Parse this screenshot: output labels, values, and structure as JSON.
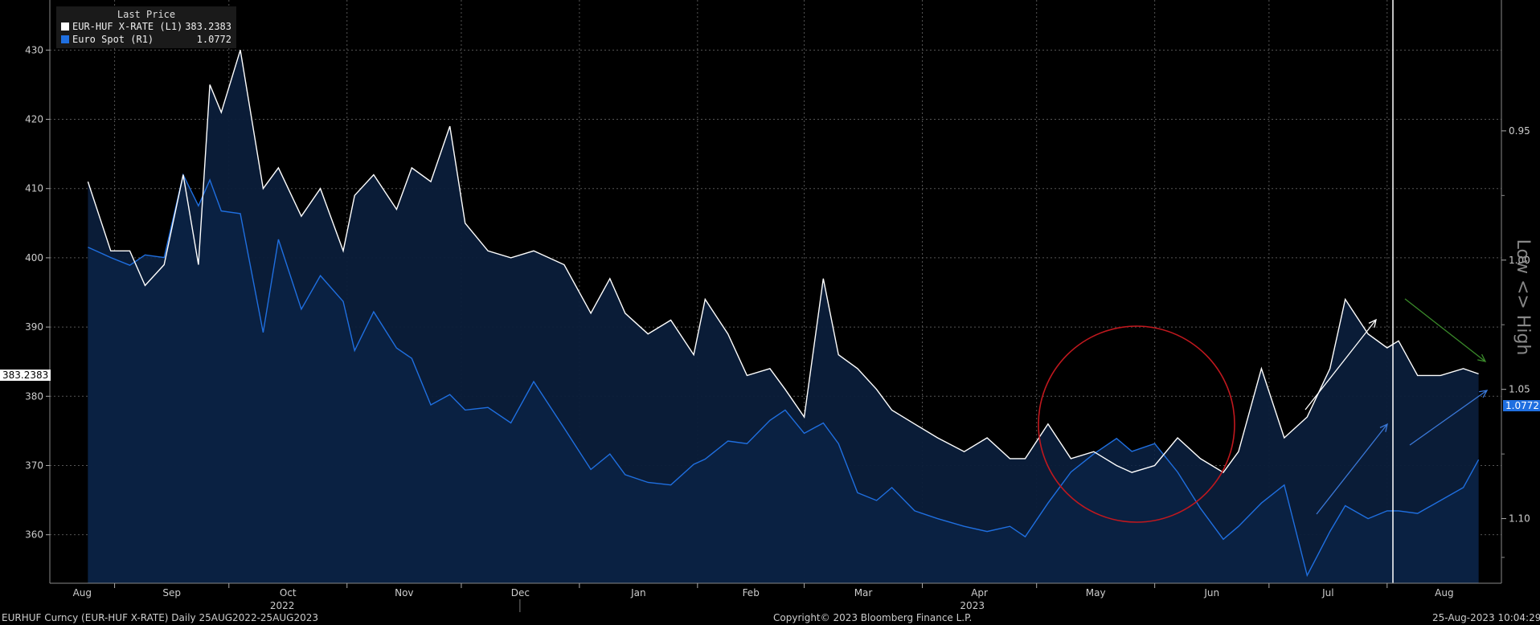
{
  "legend": {
    "title": "Last Price",
    "items": [
      {
        "name": "EUR-HUF X-RATE  (L1)",
        "value": "383.2383",
        "color": "#ffffff"
      },
      {
        "name": "Euro Spot  (R1)",
        "value": "1.0772",
        "color": "#1f6fe0"
      }
    ]
  },
  "right_axis_label": "Low <> High",
  "last_value_tags": {
    "left": "383.2383",
    "right": "1.0772"
  },
  "footer": {
    "left": "EURHUF Curncy (EUR-HUF X-RATE)  Daily 25AUG2022-25AUG2023",
    "center": "Copyright© 2023 Bloomberg Finance L.P.",
    "right": "25-Aug-2023 10:04:29"
  },
  "chart_data": {
    "type": "line",
    "x_months": [
      "Aug",
      "Sep",
      "Oct",
      "Nov",
      "Dec",
      "Jan",
      "Feb",
      "Mar",
      "Apr",
      "May",
      "Jun",
      "Jul",
      "Aug"
    ],
    "x_years": [
      "2022",
      "2023"
    ],
    "left_axis": {
      "ticks": [
        360,
        370,
        380,
        390,
        400,
        410,
        420,
        430
      ],
      "ylim": [
        353,
        437
      ]
    },
    "right_axis": {
      "ticks": [
        "0.95",
        "1.00",
        "1.05",
        "1.10"
      ],
      "ylim": [
        0.9,
        1.125
      ],
      "inverted": true
    },
    "grid": true,
    "legend_position": "top-left",
    "series": [
      {
        "name": "EUR-HUF X-RATE (L1)",
        "axis": "left",
        "color": "#ffffff",
        "x": [
          "2022-08-25",
          "2022-08-31",
          "2022-09-05",
          "2022-09-09",
          "2022-09-14",
          "2022-09-19",
          "2022-09-23",
          "2022-09-26",
          "2022-09-29",
          "2022-10-04",
          "2022-10-10",
          "2022-10-14",
          "2022-10-20",
          "2022-10-25",
          "2022-10-31",
          "2022-11-03",
          "2022-11-08",
          "2022-11-14",
          "2022-11-18",
          "2022-11-23",
          "2022-11-28",
          "2022-12-02",
          "2022-12-08",
          "2022-12-14",
          "2022-12-20",
          "2022-12-28",
          "2023-01-04",
          "2023-01-09",
          "2023-01-13",
          "2023-01-19",
          "2023-01-25",
          "2023-01-31",
          "2023-02-03",
          "2023-02-09",
          "2023-02-14",
          "2023-02-20",
          "2023-02-24",
          "2023-03-01",
          "2023-03-06",
          "2023-03-10",
          "2023-03-15",
          "2023-03-20",
          "2023-03-24",
          "2023-03-30",
          "2023-04-05",
          "2023-04-12",
          "2023-04-18",
          "2023-04-24",
          "2023-04-28",
          "2023-05-04",
          "2023-05-10",
          "2023-05-16",
          "2023-05-22",
          "2023-05-26",
          "2023-06-01",
          "2023-06-07",
          "2023-06-13",
          "2023-06-19",
          "2023-06-23",
          "2023-06-29",
          "2023-07-05",
          "2023-07-11",
          "2023-07-17",
          "2023-07-21",
          "2023-07-27",
          "2023-08-01",
          "2023-08-04",
          "2023-08-09",
          "2023-08-15",
          "2023-08-21",
          "2023-08-25"
        ],
        "y": [
          411,
          401,
          401,
          396,
          399,
          412,
          399,
          425,
          421,
          430,
          410,
          413,
          406,
          410,
          401,
          409,
          412,
          407,
          413,
          411,
          419,
          405,
          401,
          400,
          401,
          399,
          392,
          397,
          392,
          389,
          391,
          386,
          394,
          389,
          383,
          384,
          381,
          377,
          397,
          386,
          384,
          381,
          378,
          376,
          374,
          372,
          374,
          371,
          371,
          376,
          371,
          372,
          370,
          369,
          370,
          374,
          371,
          369,
          372,
          384,
          374,
          377,
          384,
          394,
          389,
          387,
          388,
          383,
          383,
          384,
          383.2383
        ]
      },
      {
        "name": "Euro Spot (R1)",
        "axis": "right",
        "color": "#1f6fe0",
        "x": [
          "2022-08-25",
          "2022-08-31",
          "2022-09-05",
          "2022-09-09",
          "2022-09-14",
          "2022-09-19",
          "2022-09-23",
          "2022-09-26",
          "2022-09-29",
          "2022-10-04",
          "2022-10-10",
          "2022-10-14",
          "2022-10-20",
          "2022-10-25",
          "2022-10-31",
          "2022-11-03",
          "2022-11-08",
          "2022-11-14",
          "2022-11-18",
          "2022-11-23",
          "2022-11-28",
          "2022-12-02",
          "2022-12-08",
          "2022-12-14",
          "2022-12-20",
          "2022-12-28",
          "2023-01-04",
          "2023-01-09",
          "2023-01-13",
          "2023-01-19",
          "2023-01-25",
          "2023-01-31",
          "2023-02-03",
          "2023-02-09",
          "2023-02-14",
          "2023-02-20",
          "2023-02-24",
          "2023-03-01",
          "2023-03-06",
          "2023-03-10",
          "2023-03-15",
          "2023-03-20",
          "2023-03-24",
          "2023-03-30",
          "2023-04-05",
          "2023-04-12",
          "2023-04-18",
          "2023-04-24",
          "2023-04-28",
          "2023-05-04",
          "2023-05-10",
          "2023-05-16",
          "2023-05-22",
          "2023-05-26",
          "2023-06-01",
          "2023-06-07",
          "2023-06-13",
          "2023-06-19",
          "2023-06-23",
          "2023-06-29",
          "2023-07-05",
          "2023-07-11",
          "2023-07-17",
          "2023-07-21",
          "2023-07-27",
          "2023-08-01",
          "2023-08-04",
          "2023-08-09",
          "2023-08-15",
          "2023-08-21",
          "2023-08-25"
        ],
        "y": [
          0.995,
          0.999,
          1.002,
          0.998,
          0.999,
          0.967,
          0.979,
          0.969,
          0.981,
          0.982,
          1.028,
          0.992,
          1.019,
          1.006,
          1.016,
          1.035,
          1.02,
          1.034,
          1.038,
          1.056,
          1.052,
          1.058,
          1.057,
          1.063,
          1.047,
          1.065,
          1.081,
          1.075,
          1.083,
          1.086,
          1.087,
          1.079,
          1.077,
          1.07,
          1.071,
          1.062,
          1.058,
          1.067,
          1.063,
          1.071,
          1.09,
          1.093,
          1.088,
          1.097,
          1.1,
          1.103,
          1.105,
          1.103,
          1.107,
          1.094,
          1.082,
          1.075,
          1.069,
          1.074,
          1.071,
          1.082,
          1.096,
          1.108,
          1.103,
          1.094,
          1.087,
          1.122,
          1.105,
          1.095,
          1.1,
          1.097,
          1.097,
          1.098,
          1.093,
          1.088,
          1.0772
        ]
      }
    ]
  }
}
